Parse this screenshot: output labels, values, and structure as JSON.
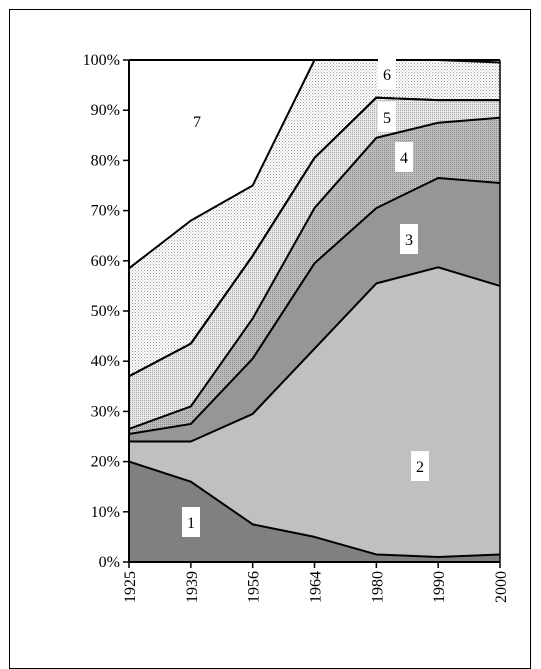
{
  "chart_data": {
    "type": "area",
    "stacked": true,
    "percent": true,
    "x": [
      "1925",
      "1939",
      "1956",
      "1964",
      "1980",
      "1990",
      "2000"
    ],
    "ylim": [
      0,
      100
    ],
    "yticks": [
      "0%",
      "10%",
      "20%",
      "30%",
      "40%",
      "50%",
      "60%",
      "70%",
      "80%",
      "90%",
      "100%"
    ],
    "grid": false,
    "series": [
      {
        "name": "1",
        "cumulative": [
          20,
          16,
          7.5,
          5,
          1.5,
          1,
          1.5
        ],
        "color": "#808080"
      },
      {
        "name": "2",
        "cumulative": [
          24,
          24,
          29.5,
          42.5,
          55.5,
          58.7,
          55
        ],
        "color": "#c0c0c0"
      },
      {
        "name": "3",
        "cumulative": [
          25.5,
          27.5,
          40.5,
          59.5,
          70.5,
          76.5,
          75.5
        ],
        "color": "#969696"
      },
      {
        "name": "4",
        "cumulative": [
          26.5,
          31,
          48.5,
          70.5,
          84.5,
          87.5,
          88.5
        ],
        "color": "#b4b4b4"
      },
      {
        "name": "5",
        "cumulative": [
          37,
          43.5,
          61,
          80.5,
          92.5,
          92,
          92
        ],
        "color": "#d2d2d2"
      },
      {
        "name": "6",
        "cumulative": [
          37,
          43.5,
          61,
          80.5,
          92.5,
          92,
          92
        ],
        "color": "#e6e6e6"
      },
      {
        "name": "7",
        "cumulative": [
          58.5,
          68,
          75,
          100,
          100,
          100,
          99.5
        ],
        "color": "#ececec"
      }
    ],
    "top_boundary": [
      100,
      100,
      100,
      100,
      100,
      100,
      100
    ]
  }
}
